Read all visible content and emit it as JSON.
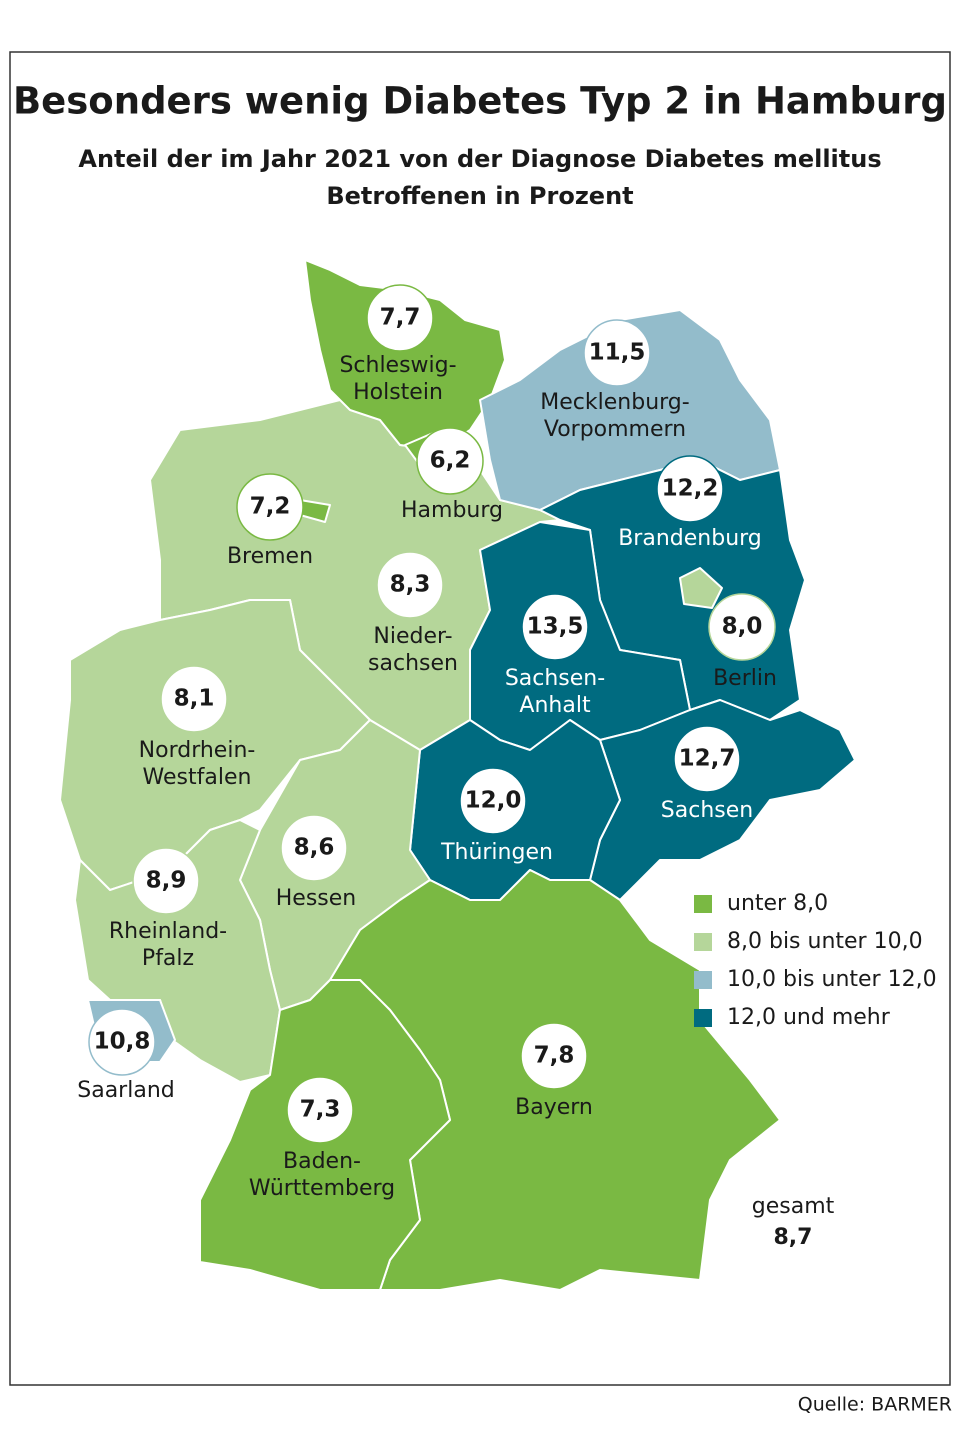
{
  "title": "Besonders wenig Diabetes Typ 2 in Hamburg",
  "subtitle": [
    "Anteil der im Jahr 2021 von der Diagnose Diabetes mellitus",
    "Betroffenen in Prozent"
  ],
  "regions": [
    {
      "name": [
        "Schleswig-",
        "Holstein"
      ],
      "value": "7,7",
      "color": "#7ab943"
    },
    {
      "name": [
        "Hamburg"
      ],
      "value": "6,2",
      "color": "#7ab943"
    },
    {
      "name": [
        "Mecklenburg-",
        "Vorpommern"
      ],
      "value": "11,5",
      "color": "#93bccb"
    },
    {
      "name": [
        "Brandenburg"
      ],
      "value": "12,2",
      "color": "#006b80"
    },
    {
      "name": [
        "Berlin"
      ],
      "value": "8,0",
      "color": "#b5d69a"
    },
    {
      "name": [
        "Sachsen-",
        "Anhalt"
      ],
      "value": "13,5",
      "color": "#006b80"
    },
    {
      "name": [
        "Sachsen"
      ],
      "value": "12,7",
      "color": "#006b80"
    },
    {
      "name": [
        "Thüringen"
      ],
      "value": "12,0",
      "color": "#006b80"
    },
    {
      "name": [
        "Nieder-",
        "sachsen"
      ],
      "value": "8,3",
      "color": "#b5d69a"
    },
    {
      "name": [
        "Bremen"
      ],
      "value": "7,2",
      "color": "#7ab943"
    },
    {
      "name": [
        "Nordrhein-",
        "Westfalen"
      ],
      "value": "8,1",
      "color": "#b5d69a"
    },
    {
      "name": [
        "Hessen"
      ],
      "value": "8,6",
      "color": "#b5d69a"
    },
    {
      "name": [
        "Rheinland-",
        "Pfalz"
      ],
      "value": "8,9",
      "color": "#b5d69a"
    },
    {
      "name": [
        "Saarland"
      ],
      "value": "10,8",
      "color": "#93bccb"
    },
    {
      "name": [
        "Baden-",
        "Württemberg"
      ],
      "value": "7,3",
      "color": "#7ab943"
    },
    {
      "name": [
        "Bayern"
      ],
      "value": "7,8",
      "color": "#7ab943"
    }
  ],
  "legend": [
    {
      "label": "unter 8,0",
      "color": "#7ab943"
    },
    {
      "label": "8,0 bis unter 10,0",
      "color": "#b5d69a"
    },
    {
      "label": "10,0 bis unter 12,0",
      "color": "#93bccb"
    },
    {
      "label": "12,0 und mehr",
      "color": "#006b80"
    }
  ],
  "total": {
    "label": "gesamt",
    "value": "8,7"
  },
  "source": "Quelle: BARMER"
}
